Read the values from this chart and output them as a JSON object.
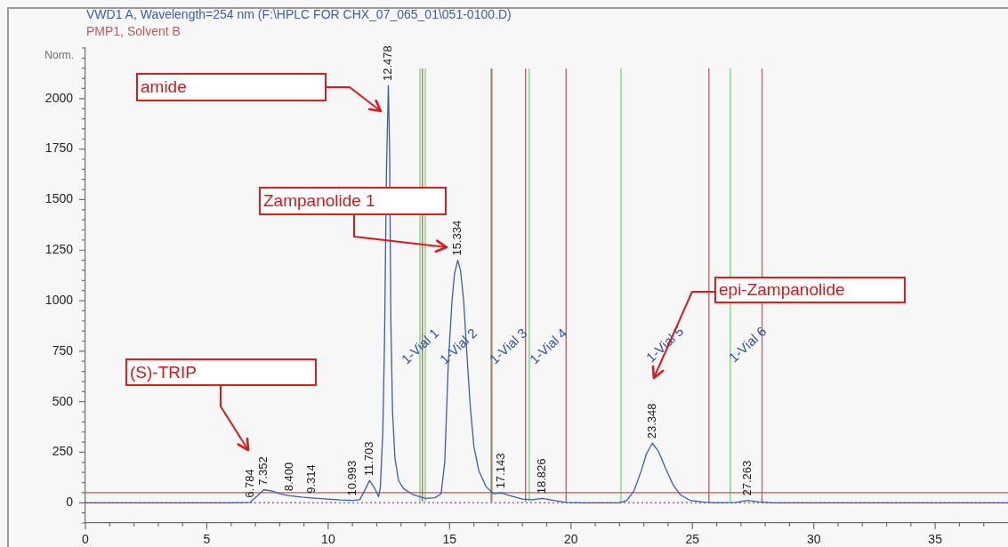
{
  "chart_data": {
    "type": "line",
    "ylabel": "Norm.",
    "series": [
      {
        "name": "VWD1 A, Wavelength=254 nm (F:\\HPLC FOR CHX_07_065_01\\051-0100.D)",
        "color": "#3a5ea8",
        "x": [
          0,
          6.0,
          6.784,
          7.0,
          7.352,
          7.7,
          8.0,
          8.4,
          8.9,
          9.314,
          10.0,
          10.5,
          10.993,
          11.3,
          11.5,
          11.703,
          11.9,
          12.08,
          12.15,
          12.25,
          12.32,
          12.4,
          12.478,
          12.53,
          12.58,
          12.65,
          12.75,
          12.9,
          13.1,
          13.5,
          14.0,
          14.4,
          14.65,
          14.8,
          14.95,
          15.1,
          15.2,
          15.334,
          15.45,
          15.58,
          15.7,
          15.85,
          16.0,
          16.2,
          16.5,
          16.8,
          17.143,
          17.5,
          18.0,
          18.4,
          18.826,
          19.3,
          19.8,
          20.5,
          22.0,
          22.3,
          22.6,
          22.9,
          23.1,
          23.348,
          23.6,
          23.9,
          24.2,
          24.5,
          24.9,
          25.5,
          26.0,
          26.8,
          27.263,
          27.7,
          28.3,
          38
        ],
        "values": [
          0,
          0,
          2,
          25,
          64,
          58,
          45,
          35,
          28,
          24,
          18,
          14,
          12,
          15,
          60,
          110,
          75,
          30,
          80,
          350,
          800,
          1650,
          2065,
          1750,
          900,
          450,
          220,
          110,
          70,
          40,
          22,
          25,
          45,
          200,
          700,
          1000,
          1130,
          1200,
          1150,
          1000,
          760,
          480,
          280,
          160,
          80,
          45,
          48,
          35,
          18,
          15,
          22,
          12,
          2,
          0,
          0,
          12,
          60,
          160,
          240,
          295,
          255,
          170,
          90,
          40,
          12,
          3,
          0,
          2,
          12,
          5,
          0,
          0
        ]
      },
      {
        "name": "PMP1, Solvent B",
        "color": "#c05a5a",
        "x": [
          0,
          38
        ],
        "values": [
          50,
          50
        ]
      }
    ],
    "xlim": [
      0,
      38
    ],
    "xticks": [
      0,
      {
        "value": 1,
        "label": null
      },
      {
        "value": 2,
        "label": null
      },
      {
        "value": 3,
        "label": null
      },
      {
        "value": 4,
        "label": null
      },
      5,
      {
        "value": 6,
        "label": null
      },
      {
        "value": 7,
        "label": null
      },
      {
        "value": 8,
        "label": null
      },
      {
        "value": 9,
        "label": null
      },
      10,
      {
        "value": 11,
        "label": null
      },
      {
        "value": 12,
        "label": null
      },
      {
        "value": 13,
        "label": null
      },
      {
        "value": 14,
        "label": null
      },
      15,
      {
        "value": 16,
        "label": null
      },
      {
        "value": 17,
        "label": null
      },
      {
        "value": 18,
        "label": null
      },
      {
        "value": 19,
        "label": null
      },
      20,
      {
        "value": 21,
        "label": null
      },
      {
        "value": 22,
        "label": null
      },
      {
        "value": 23,
        "label": null
      },
      {
        "value": 24,
        "label": null
      },
      25,
      {
        "value": 26,
        "label": null
      },
      {
        "value": 27,
        "label": null
      },
      {
        "value": 28,
        "label": null
      },
      {
        "value": 29,
        "label": null
      },
      30,
      {
        "value": 31,
        "label": null
      },
      {
        "value": 32,
        "label": null
      },
      {
        "value": 33,
        "label": null
      },
      {
        "value": 34,
        "label": null
      },
      35,
      {
        "value": 36,
        "label": null
      },
      {
        "value": 37,
        "label": null
      }
    ],
    "ylim": [
      -100,
      2250
    ],
    "yticks": [
      {
        "value": -100,
        "label": null
      },
      {
        "value": -50,
        "label": null
      },
      0,
      {
        "value": 50,
        "label": null
      },
      {
        "value": 100,
        "label": null
      },
      {
        "value": 150,
        "label": null
      },
      {
        "value": 200,
        "label": null
      },
      250,
      {
        "value": 300,
        "label": null
      },
      {
        "value": 350,
        "label": null
      },
      {
        "value": 400,
        "label": null
      },
      {
        "value": 450,
        "label": null
      },
      500,
      {
        "value": 550,
        "label": null
      },
      {
        "value": 600,
        "label": null
      },
      {
        "value": 650,
        "label": null
      },
      {
        "value": 700,
        "label": null
      },
      750,
      {
        "value": 800,
        "label": null
      },
      {
        "value": 850,
        "label": null
      },
      {
        "value": 900,
        "label": null
      },
      {
        "value": 950,
        "label": null
      },
      1000,
      {
        "value": 1050,
        "label": null
      },
      {
        "value": 1100,
        "label": null
      },
      {
        "value": 1150,
        "label": null
      },
      {
        "value": 1200,
        "label": null
      },
      1250,
      {
        "value": 1300,
        "label": null
      },
      {
        "value": 1350,
        "label": null
      },
      {
        "value": 1400,
        "label": null
      },
      {
        "value": 1450,
        "label": null
      },
      1500,
      {
        "value": 1550,
        "label": null
      },
      {
        "value": 1600,
        "label": null
      },
      {
        "value": 1650,
        "label": null
      },
      {
        "value": 1700,
        "label": null
      },
      1750,
      {
        "value": 1800,
        "label": null
      },
      {
        "value": 1850,
        "label": null
      },
      {
        "value": 1900,
        "label": null
      },
      {
        "value": 1950,
        "label": null
      },
      2000,
      {
        "value": 2050,
        "label": null
      },
      {
        "value": 2100,
        "label": null
      },
      {
        "value": 2150,
        "label": null
      },
      {
        "value": 2200,
        "label": null
      },
      {
        "value": 2250,
        "label": null
      }
    ],
    "legend": "top left",
    "marker": "none",
    "line_style": "solid",
    "ref_lines": [
      {
        "axis": "y",
        "value": 0,
        "color": "#9a5ccc",
        "line_style": "dotted"
      },
      {
        "axis": "x",
        "value": 13.78,
        "color": "#77dd77"
      },
      {
        "axis": "x",
        "value": 13.88,
        "color": "#b86868"
      },
      {
        "axis": "x",
        "value": 14.0,
        "color": "#77dd77"
      },
      {
        "axis": "x",
        "value": 16.7,
        "color": "#77dd77"
      },
      {
        "axis": "x",
        "value": 16.74,
        "color": "#b86868"
      },
      {
        "axis": "x",
        "value": 18.13,
        "color": "#b86868"
      },
      {
        "axis": "x",
        "value": 18.28,
        "color": "#77dd77"
      },
      {
        "axis": "x",
        "value": 19.8,
        "color": "#b86868"
      },
      {
        "axis": "x",
        "value": 22.06,
        "color": "#77dd77"
      },
      {
        "axis": "x",
        "value": 25.68,
        "color": "#b86868"
      },
      {
        "axis": "x",
        "value": 26.56,
        "color": "#77dd77"
      },
      {
        "axis": "x",
        "value": 27.87,
        "color": "#b86868"
      }
    ],
    "annotations": [
      "amide",
      "Zampanolide 1",
      "epi-Zampanolide",
      "(S)-TRIP",
      "1-Vial 1",
      "1-Vial 2",
      "1-Vial 3",
      "1-Vial 4",
      "1-Vial 5",
      "1-Vial 6",
      {
        "text": "6.784",
        "x": 6.784,
        "y": 2
      },
      {
        "text": "7.352",
        "x": 7.352,
        "y": 64
      },
      {
        "text": "8.400",
        "x": 8.4,
        "y": 35
      },
      {
        "text": "9.314",
        "x": 9.314,
        "y": 24
      },
      {
        "text": "10.993",
        "x": 10.993,
        "y": 12
      },
      {
        "text": "11.703",
        "x": 11.703,
        "y": 110
      },
      {
        "text": "12.478",
        "x": 12.478,
        "y": 2065
      },
      {
        "text": "15.334",
        "x": 15.334,
        "y": 1200
      },
      {
        "text": "17.143",
        "x": 17.143,
        "y": 48
      },
      {
        "text": "18.826",
        "x": 18.826,
        "y": 22
      },
      {
        "text": "23.348",
        "x": 23.348,
        "y": 295
      },
      {
        "text": "27.263",
        "x": 27.263,
        "y": 12
      }
    ]
  }
}
